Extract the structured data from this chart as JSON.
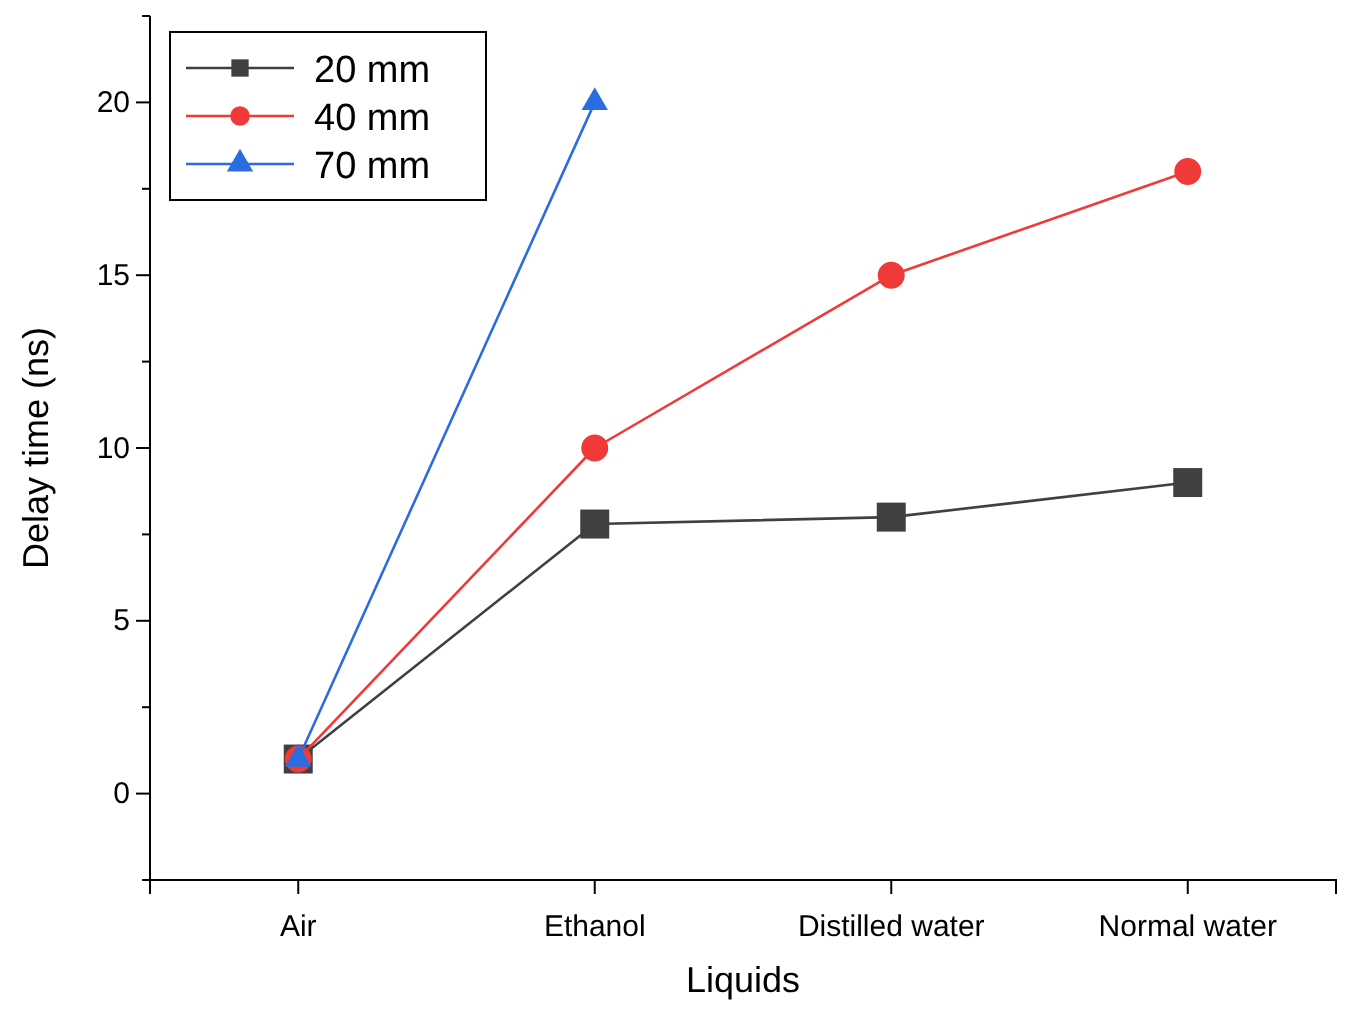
{
  "chart_data": {
    "type": "line",
    "xlabel": "Liquids",
    "ylabel": "Delay time (ns)",
    "categories": [
      "Air",
      "Ethanol",
      "Distilled water",
      "Normal water"
    ],
    "ylim": [
      -2.5,
      22.5
    ],
    "yticks": [
      {
        "value": -2.5,
        "label": null
      },
      0,
      {
        "value": 2.5,
        "label": null
      },
      5,
      {
        "value": 7.5,
        "label": null
      },
      10,
      {
        "value": 12.5,
        "label": null
      },
      15,
      {
        "value": 17.5,
        "label": null
      },
      20,
      {
        "value": 22.5,
        "label": null
      }
    ],
    "grid": false,
    "legend": "top left",
    "line_style": "solid",
    "series": [
      {
        "name": "20 mm",
        "color": "#404040",
        "marker": "square",
        "values": [
          1,
          7.8,
          8,
          9
        ]
      },
      {
        "name": "40 mm",
        "color": "#f03a3a",
        "marker": "circle",
        "values": [
          1,
          10,
          15,
          18
        ]
      },
      {
        "name": "70 mm",
        "color": "#2b6de0",
        "marker": "triangle",
        "values": [
          1,
          20,
          null,
          null
        ]
      }
    ]
  }
}
